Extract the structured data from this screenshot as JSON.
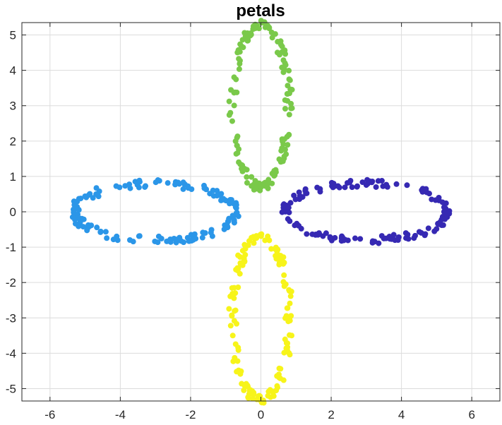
{
  "chart_data": {
    "type": "scatter",
    "title": "petals",
    "xlabel": "",
    "ylabel": "",
    "xlim": [
      -6.8,
      6.8
    ],
    "ylim": [
      -5.35,
      5.35
    ],
    "grid": true,
    "xticks": [
      -6,
      -4,
      -2,
      0,
      2,
      4,
      6
    ],
    "yticks": [
      -5,
      -4,
      -3,
      -2,
      -1,
      0,
      1,
      2,
      3,
      4,
      5
    ],
    "series": [
      {
        "color": "#3629b3",
        "shape": "ellipse",
        "center": [
          3,
          0
        ],
        "radius_x": 2.3,
        "radius_y": 0.8,
        "count": 150
      },
      {
        "color": "#7ac94a",
        "shape": "ellipse",
        "center": [
          0,
          3
        ],
        "radius_x": 0.8,
        "radius_y": 2.3,
        "count": 150
      },
      {
        "color": "#2b96e8",
        "shape": "ellipse",
        "center": [
          -3,
          0
        ],
        "radius_x": 2.3,
        "radius_y": 0.8,
        "count": 150
      },
      {
        "color": "#f7f41a",
        "shape": "ellipse",
        "center": [
          0,
          -3
        ],
        "radius_x": 0.8,
        "radius_y": 2.3,
        "count": 150
      }
    ]
  }
}
